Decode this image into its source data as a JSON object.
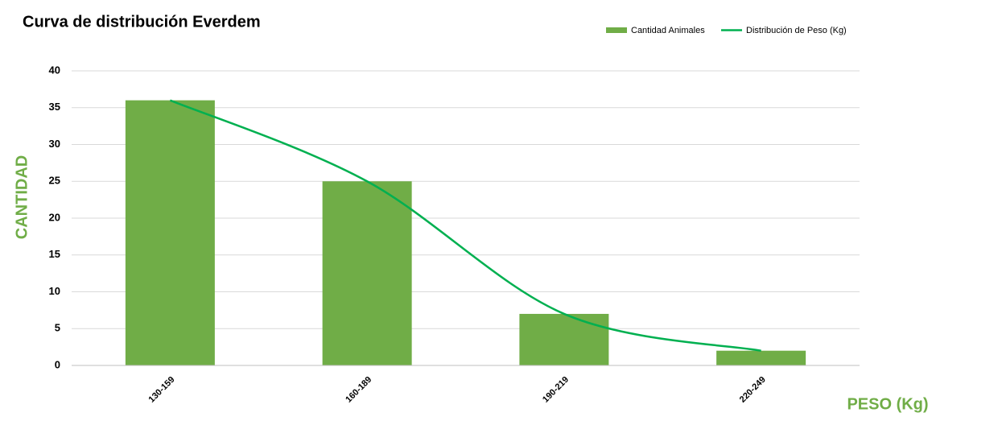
{
  "chart_data": {
    "type": "bar",
    "title": "Curva de distribución Everdem",
    "y_label": "CANTIDAD",
    "x_label": "PESO (Kg)",
    "categories": [
      "130-159",
      "160-189",
      "190-219",
      "220-249"
    ],
    "series": [
      {
        "name": "Cantidad Animales",
        "type": "bar",
        "color": "#70ad47",
        "values": [
          36,
          25,
          7,
          2
        ]
      },
      {
        "name": "Distribución de Peso (Kg)",
        "type": "line",
        "color": "#00b050",
        "values": [
          36,
          25,
          7,
          2
        ]
      }
    ],
    "ylim": [
      0,
      40
    ],
    "yticks": [
      0,
      5,
      10,
      15,
      20,
      25,
      30,
      35,
      40
    ],
    "grid": true,
    "legend": "top-right"
  }
}
